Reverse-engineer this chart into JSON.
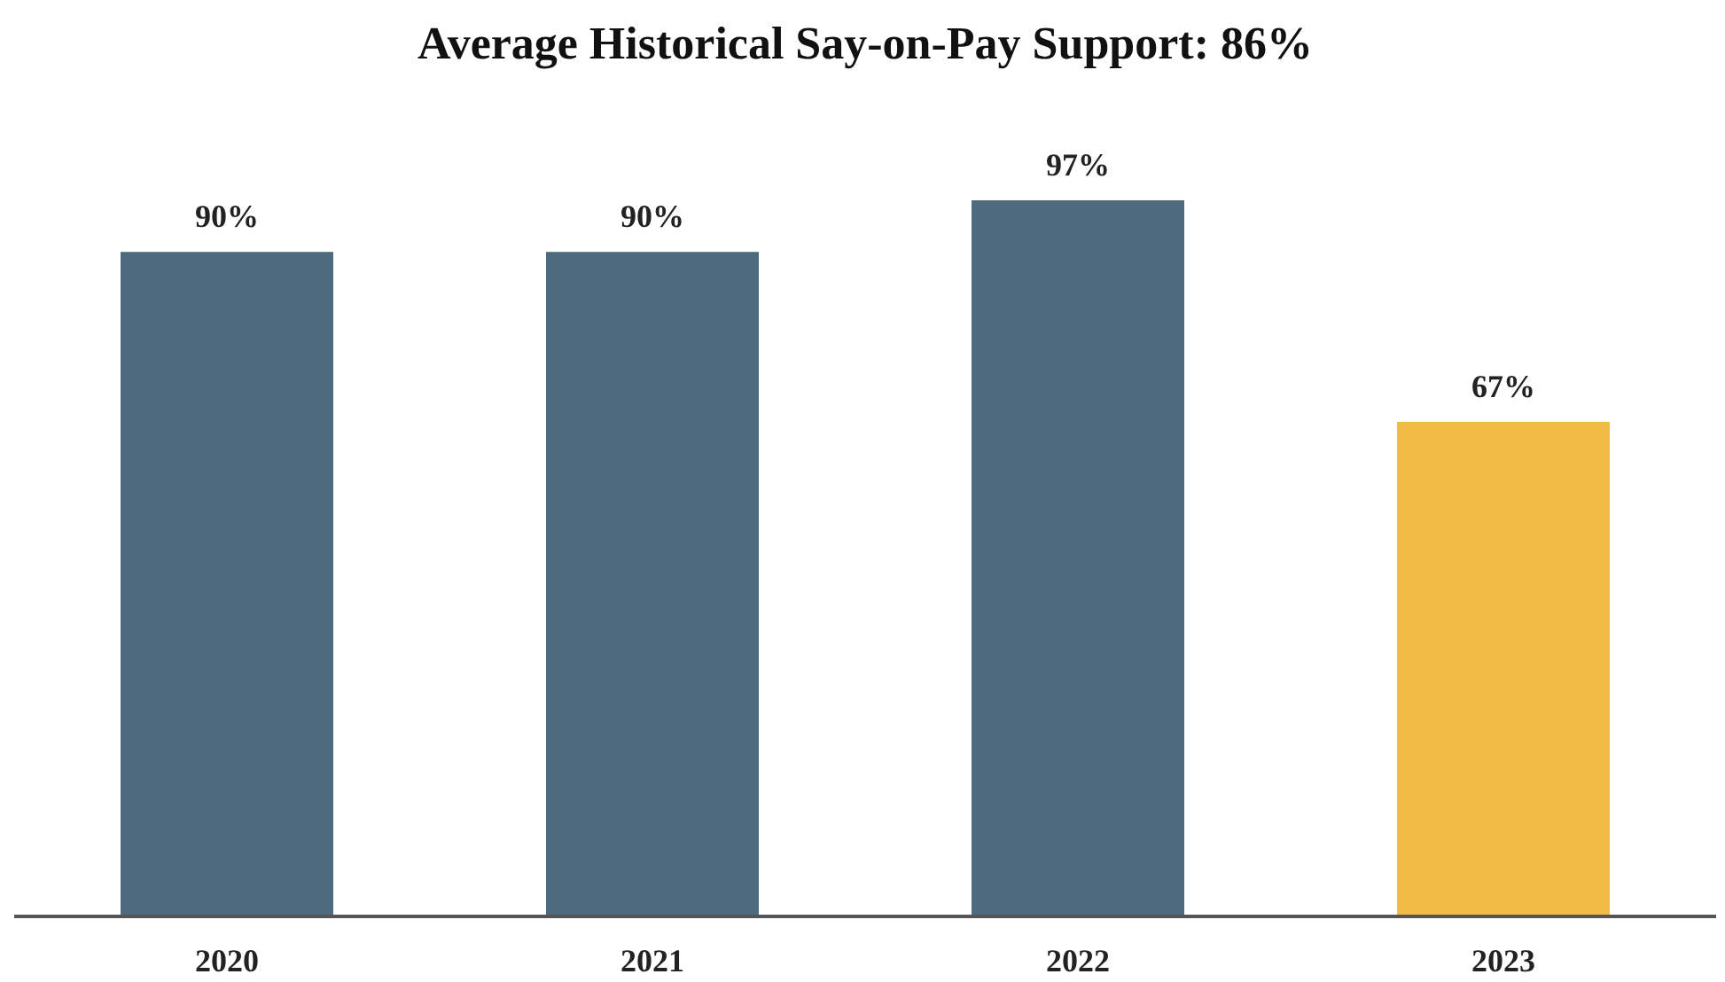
{
  "chart_data": {
    "type": "bar",
    "title": "Average Historical Say-on-Pay Support: 86%",
    "categories": [
      "2020",
      "2021",
      "2022",
      "2023"
    ],
    "values": [
      90,
      90,
      97,
      67
    ],
    "colors": [
      "#4d6a7c",
      "#4d6a7c",
      "#4d6a7c",
      "#f2bb44"
    ],
    "value_labels": [
      "90%",
      "90%",
      "97%",
      "67%"
    ]
  }
}
